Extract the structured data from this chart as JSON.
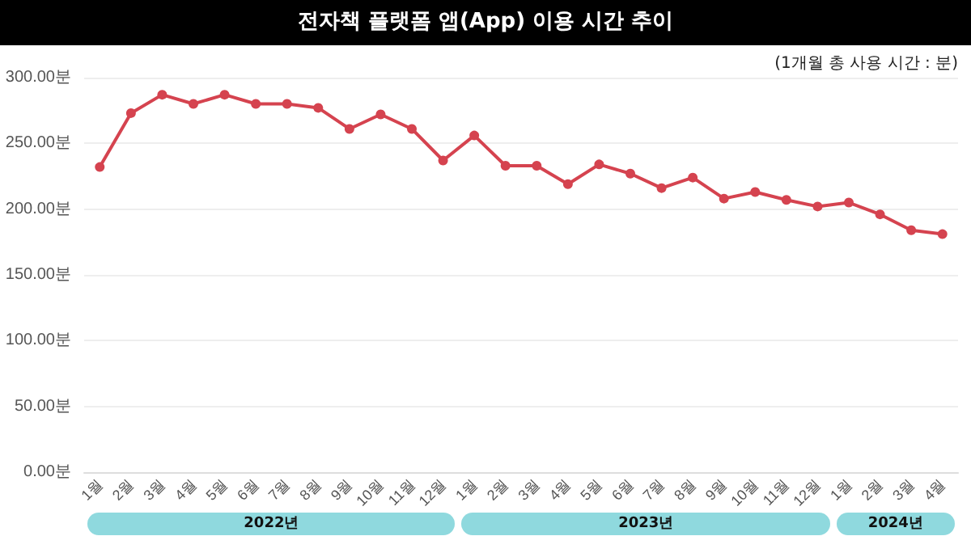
{
  "chart_data": {
    "type": "line",
    "title": "전자책 플랫폼 앱(App) 이용 시간 추이",
    "subtitle": "(1개월 총 사용 시간 : 분)",
    "categories": [
      "1월",
      "2월",
      "3월",
      "4월",
      "5월",
      "6월",
      "7월",
      "8월",
      "9월",
      "10월",
      "11월",
      "12월",
      "1월",
      "2월",
      "3월",
      "4월",
      "5월",
      "6월",
      "7월",
      "8월",
      "9월",
      "10월",
      "11월",
      "12월",
      "1월",
      "2월",
      "3월",
      "4월"
    ],
    "values": [
      232,
      273,
      287,
      280,
      287,
      280,
      280,
      277,
      261,
      272,
      261,
      237,
      256,
      233,
      233,
      219,
      234,
      227,
      216,
      224,
      208,
      213,
      207,
      202,
      205,
      196,
      184,
      181
    ],
    "color": "#d5434f",
    "annotations": [
      "2022년",
      "2023년",
      "2024년"
    ],
    "ylim": [
      0,
      300
    ],
    "yticks": [
      {
        "value": 0,
        "label": "0.00분"
      },
      {
        "value": 50,
        "label": "50.00분"
      },
      {
        "value": 100,
        "label": "100.00분"
      },
      {
        "value": 150,
        "label": "150.00분"
      },
      {
        "value": 200,
        "label": "200.00분"
      },
      {
        "value": 250,
        "label": "250.00분"
      },
      {
        "value": 300,
        "label": "300.00분"
      }
    ],
    "grid": "y",
    "marker": "circle",
    "line_style": "solid"
  }
}
